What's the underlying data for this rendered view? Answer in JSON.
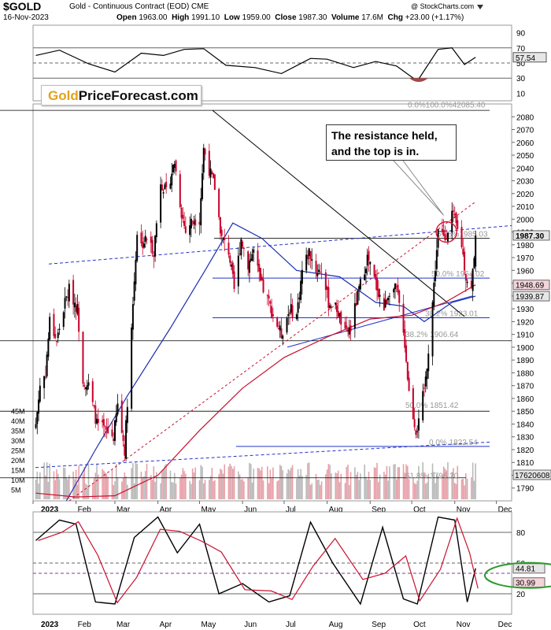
{
  "header": {
    "symbol": "$GOLD",
    "subtitle": "Gold - Continuous Contract (EOD)  CME",
    "date": "16-Nov-2023",
    "open_label": "Open",
    "open": "1963.00",
    "high_label": "High",
    "high": "1991.10",
    "low_label": "Low",
    "low": "1959.00",
    "close_label": "Close",
    "close": "1987.30",
    "volume_label": "Volume",
    "volume": "17.6M",
    "chg_label": "Chg",
    "chg": "+23.00 (+1.17%)",
    "credit": "@ StockCharts.com"
  },
  "logo": {
    "part1": "Gold",
    "part2": "PriceForecast.com"
  },
  "annotation": {
    "text": "The resistance held,\nand the top is in."
  },
  "colors": {
    "up": "#000000",
    "down": "#c8002a",
    "ma_blue": "#1c2fb0",
    "ma_red": "#c8102e",
    "fib_blue": "#2233cc",
    "volume": "#b9b9b9",
    "volume_red": "#e8a0a8",
    "highlight_circle": "#d81b3b",
    "green_ellipse": "#2b9a2b",
    "badge_red": "#f4d4da",
    "badge_gray": "#e6e6e6"
  },
  "chart_data": [
    {
      "type": "line",
      "name": "rsi_panel",
      "y_ticks": [
        10,
        30,
        50,
        70,
        90
      ],
      "ylim": [
        0,
        100
      ],
      "last_value_label": "57.54",
      "reference_lines": [
        70,
        50,
        30
      ],
      "x": [
        "2023-01-03",
        "2023-01-20",
        "2023-02-10",
        "2023-03-01",
        "2023-03-20",
        "2023-04-05",
        "2023-04-20",
        "2023-05-04",
        "2023-05-20",
        "2023-06-10",
        "2023-06-29",
        "2023-07-20",
        "2023-08-01",
        "2023-08-20",
        "2023-09-05",
        "2023-09-20",
        "2023-10-05",
        "2023-10-20",
        "2023-10-30",
        "2023-11-08",
        "2023-11-16"
      ],
      "values": [
        60,
        67,
        49,
        38,
        63,
        60,
        68,
        69,
        47,
        44,
        36,
        56,
        55,
        44,
        52,
        46,
        26,
        68,
        70,
        48,
        57.54
      ]
    },
    {
      "type": "candlestick",
      "name": "price_panel",
      "ylim": [
        1780,
        2090
      ],
      "y_ticks": [
        1790,
        1800,
        1810,
        1820,
        1830,
        1840,
        1850,
        1860,
        1870,
        1880,
        1890,
        1900,
        1910,
        1920,
        1930,
        1940,
        1950,
        1960,
        1970,
        1980,
        1990,
        2000,
        2010,
        2020,
        2030,
        2040,
        2050,
        2060,
        2070,
        2080
      ],
      "x_tick_labels": [
        "2023",
        "Feb",
        "Mar",
        "Apr",
        "May",
        "Jun",
        "Jul",
        "Aug",
        "Sep",
        "Oct",
        "Nov",
        "Dec"
      ],
      "price_labels": {
        "last_close": "1987.30",
        "ma_red": "1948.69",
        "ma_blue": "1939.87"
      },
      "fib_levels": [
        {
          "label": "0.0%",
          "value": 1985.0
        },
        {
          "label": "50.0%",
          "value": 1954.02
        },
        {
          "label": "38.2%",
          "value": 1923.01
        },
        {
          "label": "38.2%",
          "value": 1906.64
        },
        {
          "label": "50.0%",
          "value": 1851.42
        },
        {
          "label": "0.0%",
          "value": 1822.54
        },
        {
          "label": "61.8%",
          "value": 1796.2
        }
      ],
      "top_fib_label": "0.0%100.0%42085.40",
      "fib_label_1985": "61.8%1985.03",
      "volume_ticks": [
        "5M",
        "10M",
        "15M",
        "20M",
        "25M",
        "30M",
        "35M",
        "40M",
        "45M"
      ],
      "volume_last_label": "17620608",
      "closes": [
        {
          "d": "2023-01-03",
          "c": 1840
        },
        {
          "d": "2023-01-06",
          "c": 1870
        },
        {
          "d": "2023-01-10",
          "c": 1880
        },
        {
          "d": "2023-01-13",
          "c": 1921
        },
        {
          "d": "2023-01-18",
          "c": 1905
        },
        {
          "d": "2023-01-24",
          "c": 1935
        },
        {
          "d": "2023-01-27",
          "c": 1945
        },
        {
          "d": "2023-02-02",
          "c": 1930
        },
        {
          "d": "2023-02-06",
          "c": 1875
        },
        {
          "d": "2023-02-10",
          "c": 1870
        },
        {
          "d": "2023-02-16",
          "c": 1840
        },
        {
          "d": "2023-02-22",
          "c": 1835
        },
        {
          "d": "2023-02-28",
          "c": 1830
        },
        {
          "d": "2023-03-03",
          "c": 1855
        },
        {
          "d": "2023-03-08",
          "c": 1820
        },
        {
          "d": "2023-03-13",
          "c": 1915
        },
        {
          "d": "2023-03-17",
          "c": 1990
        },
        {
          "d": "2023-03-20",
          "c": 1980
        },
        {
          "d": "2023-03-24",
          "c": 1985
        },
        {
          "d": "2023-03-29",
          "c": 1975
        },
        {
          "d": "2023-04-03",
          "c": 2030
        },
        {
          "d": "2023-04-07",
          "c": 2020
        },
        {
          "d": "2023-04-13",
          "c": 2045
        },
        {
          "d": "2023-04-18",
          "c": 2005
        },
        {
          "d": "2023-04-21",
          "c": 1990
        },
        {
          "d": "2023-04-26",
          "c": 2000
        },
        {
          "d": "2023-05-01",
          "c": 2000
        },
        {
          "d": "2023-05-04",
          "c": 2055
        },
        {
          "d": "2023-05-09",
          "c": 2035
        },
        {
          "d": "2023-05-12",
          "c": 2025
        },
        {
          "d": "2023-05-17",
          "c": 1985
        },
        {
          "d": "2023-05-22",
          "c": 1975
        },
        {
          "d": "2023-05-26",
          "c": 1945
        },
        {
          "d": "2023-05-31",
          "c": 1985
        },
        {
          "d": "2023-06-05",
          "c": 1965
        },
        {
          "d": "2023-06-09",
          "c": 1975
        },
        {
          "d": "2023-06-14",
          "c": 1950
        },
        {
          "d": "2023-06-20",
          "c": 1935
        },
        {
          "d": "2023-06-23",
          "c": 1925
        },
        {
          "d": "2023-06-29",
          "c": 1910
        },
        {
          "d": "2023-07-05",
          "c": 1930
        },
        {
          "d": "2023-07-10",
          "c": 1925
        },
        {
          "d": "2023-07-14",
          "c": 1960
        },
        {
          "d": "2023-07-19",
          "c": 1975
        },
        {
          "d": "2023-07-24",
          "c": 1960
        },
        {
          "d": "2023-07-28",
          "c": 1960
        },
        {
          "d": "2023-08-02",
          "c": 1935
        },
        {
          "d": "2023-08-08",
          "c": 1930
        },
        {
          "d": "2023-08-14",
          "c": 1910
        },
        {
          "d": "2023-08-18",
          "c": 1915
        },
        {
          "d": "2023-08-24",
          "c": 1945
        },
        {
          "d": "2023-08-30",
          "c": 1970
        },
        {
          "d": "2023-09-05",
          "c": 1950
        },
        {
          "d": "2023-09-11",
          "c": 1930
        },
        {
          "d": "2023-09-15",
          "c": 1945
        },
        {
          "d": "2023-09-20",
          "c": 1945
        },
        {
          "d": "2023-09-25",
          "c": 1915
        },
        {
          "d": "2023-09-29",
          "c": 1865
        },
        {
          "d": "2023-10-04",
          "c": 1835
        },
        {
          "d": "2023-10-06",
          "c": 1840
        },
        {
          "d": "2023-10-11",
          "c": 1875
        },
        {
          "d": "2023-10-16",
          "c": 1935
        },
        {
          "d": "2023-10-20",
          "c": 1990
        },
        {
          "d": "2023-10-25",
          "c": 1985
        },
        {
          "d": "2023-10-30",
          "c": 2005
        },
        {
          "d": "2023-11-02",
          "c": 1995
        },
        {
          "d": "2023-11-06",
          "c": 1980
        },
        {
          "d": "2023-11-09",
          "c": 1955
        },
        {
          "d": "2023-11-13",
          "c": 1945
        },
        {
          "d": "2023-11-16",
          "c": 1987.3
        }
      ]
    },
    {
      "type": "line",
      "name": "stochastic_panel",
      "y_ticks": [
        20,
        50,
        80
      ],
      "ylim": [
        0,
        100
      ],
      "last_value_labels": [
        "44.81",
        "30.99"
      ],
      "reference_lines": [
        80,
        50,
        20
      ],
      "x": [
        "2023-01-03",
        "2023-01-20",
        "2023-02-01",
        "2023-02-15",
        "2023-03-01",
        "2023-03-15",
        "2023-04-01",
        "2023-04-15",
        "2023-05-01",
        "2023-05-15",
        "2023-06-01",
        "2023-06-20",
        "2023-07-05",
        "2023-07-20",
        "2023-08-05",
        "2023-08-25",
        "2023-09-10",
        "2023-09-25",
        "2023-10-05",
        "2023-10-20",
        "2023-11-01",
        "2023-11-10",
        "2023-11-16"
      ],
      "values": [
        72,
        92,
        88,
        12,
        10,
        75,
        95,
        60,
        88,
        20,
        30,
        12,
        18,
        90,
        50,
        10,
        85,
        15,
        10,
        95,
        92,
        12,
        44.81
      ]
    }
  ]
}
